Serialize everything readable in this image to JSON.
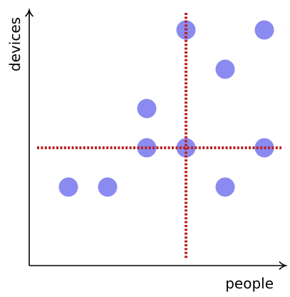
{
  "chart_data": {
    "type": "scatter",
    "title": "",
    "xlabel": "people",
    "ylabel": "devices",
    "xlim": [
      0,
      10
    ],
    "ylim": [
      0,
      10
    ],
    "grid": false,
    "tick_labels": false,
    "series": [
      {
        "points": [
          {
            "x": 1,
            "y": 2
          },
          {
            "x": 2,
            "y": 2
          },
          {
            "x": 3,
            "y": 3
          },
          {
            "x": 3,
            "y": 4
          },
          {
            "x": 4,
            "y": 3
          },
          {
            "x": 4,
            "y": 6
          },
          {
            "x": 5,
            "y": 5
          },
          {
            "x": 5,
            "y": 2
          },
          {
            "x": 6,
            "y": 3
          },
          {
            "x": 6,
            "y": 6
          }
        ],
        "color": "#8a8af0"
      }
    ],
    "reference_lines": {
      "vertical_x": 4,
      "horizontal_y": 3,
      "color": "#bb2222",
      "style": "dotted"
    }
  }
}
